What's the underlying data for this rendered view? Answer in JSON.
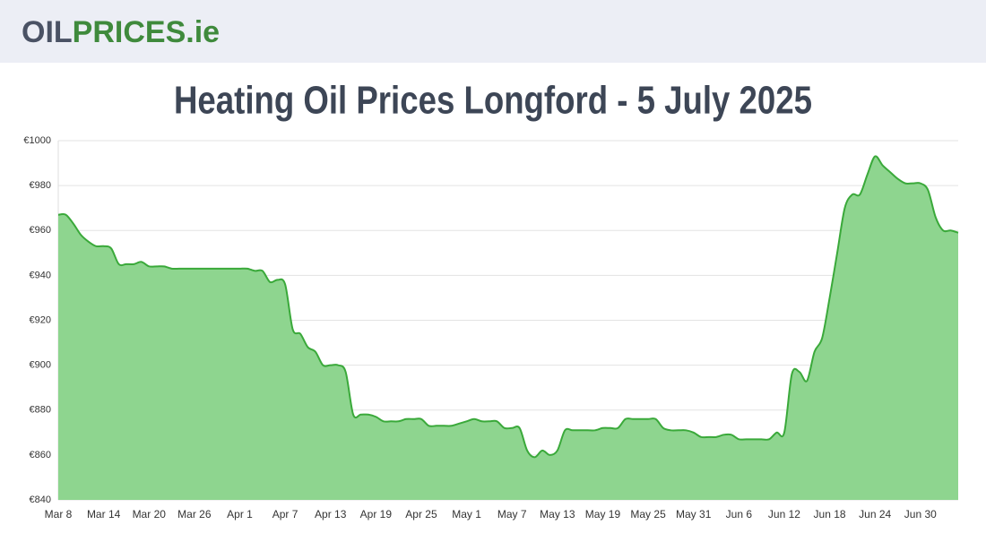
{
  "logo": {
    "part1": "OIL",
    "part2": "PRICES.ie"
  },
  "chart_data": {
    "type": "area",
    "title": "Heating Oil Prices Longford - 5 July 2025",
    "categories": [
      "Mar 8",
      null,
      null,
      null,
      null,
      null,
      "Mar 14",
      null,
      null,
      null,
      null,
      null,
      "Mar 20",
      null,
      null,
      null,
      null,
      null,
      "Mar 26",
      null,
      null,
      null,
      null,
      null,
      "Apr 1",
      null,
      null,
      null,
      null,
      null,
      "Apr 7",
      null,
      null,
      null,
      null,
      null,
      "Apr 13",
      null,
      null,
      null,
      null,
      null,
      "Apr 19",
      null,
      null,
      null,
      null,
      null,
      "Apr 25",
      null,
      null,
      null,
      null,
      null,
      "May 1",
      null,
      null,
      null,
      null,
      null,
      "May 7",
      null,
      null,
      null,
      null,
      null,
      "May 13",
      null,
      null,
      null,
      null,
      null,
      "May 19",
      null,
      null,
      null,
      null,
      null,
      "May 25",
      null,
      null,
      null,
      null,
      null,
      "May 31",
      null,
      null,
      null,
      null,
      null,
      "Jun 6",
      null,
      null,
      null,
      null,
      null,
      "Jun 12",
      null,
      null,
      null,
      null,
      null,
      "Jun 18",
      null,
      null,
      null,
      null,
      null,
      "Jun 24",
      null,
      null,
      null,
      null,
      null,
      "Jun 30",
      null,
      null,
      null,
      null,
      null
    ],
    "values": [
      967,
      967,
      963,
      958,
      955,
      953,
      953,
      952,
      945,
      945,
      945,
      946,
      944,
      944,
      944,
      943,
      943,
      943,
      943,
      943,
      943,
      943,
      943,
      943,
      943,
      943,
      942,
      942,
      937,
      938,
      936,
      916,
      914,
      908,
      906,
      900,
      900,
      900,
      897,
      878,
      878,
      878,
      877,
      875,
      875,
      875,
      876,
      876,
      876,
      873,
      873,
      873,
      873,
      874,
      875,
      876,
      875,
      875,
      875,
      872,
      872,
      872,
      862,
      859,
      862,
      860,
      862,
      871,
      871,
      871,
      871,
      871,
      872,
      872,
      872,
      876,
      876,
      876,
      876,
      876,
      872,
      871,
      871,
      871,
      870,
      868,
      868,
      868,
      869,
      869,
      867,
      867,
      867,
      867,
      867,
      870,
      870,
      896,
      897,
      893,
      906,
      912,
      930,
      950,
      970,
      976,
      976,
      985,
      993,
      989,
      986,
      983,
      981,
      981,
      981,
      978,
      966,
      960,
      960,
      959
    ],
    "color": "#8ed58f",
    "line_color": "#3aa93a",
    "ylim": [
      840,
      1000
    ],
    "yticks": [
      {
        "value": 840,
        "label": "€840"
      },
      {
        "value": 860,
        "label": "€860"
      },
      {
        "value": 880,
        "label": "€880"
      },
      {
        "value": 900,
        "label": "€900"
      },
      {
        "value": 920,
        "label": "€920"
      },
      {
        "value": 940,
        "label": "€940"
      },
      {
        "value": 960,
        "label": "€960"
      },
      {
        "value": 980,
        "label": "€980"
      },
      {
        "value": 1000,
        "label": "€1000"
      }
    ],
    "grid": true
  }
}
